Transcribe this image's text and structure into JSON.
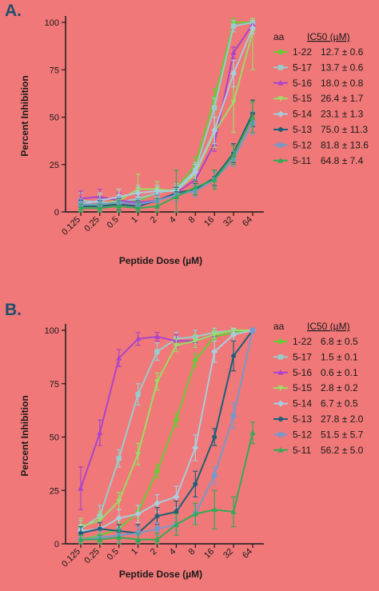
{
  "colors": {
    "background": "#f07878",
    "series": {
      "1-22": "#66cc33",
      "5-17": "#99cccc",
      "5-16": "#aa44cc",
      "5-15": "#99dd66",
      "5-14": "#aaccdd",
      "5-13": "#1e5f7a",
      "5-12": "#7799cc",
      "5-11": "#33aa55"
    }
  },
  "chart_data": [
    {
      "type": "line",
      "panel_label": "A.",
      "xlabel": "Peptide Dose (µM)",
      "ylabel": "Percent Inhibition",
      "x_scale": "log2",
      "x": [
        0.125,
        0.25,
        0.5,
        1,
        2,
        4,
        8,
        16,
        32,
        64
      ],
      "x_tick_labels": [
        "0.125",
        "0.25",
        "0.5",
        "1",
        "2",
        "4",
        "8",
        "16",
        "32",
        "64"
      ],
      "y_ticks": [
        0,
        25,
        50,
        75,
        100
      ],
      "ylim": [
        0,
        100
      ],
      "legend_header": {
        "name": "aa",
        "value": "IC50 (µM)"
      },
      "legend_position": "right",
      "series": [
        {
          "name": "1-22",
          "ic50": "12.7 ± 0.6",
          "marker": "circle",
          "values": [
            3,
            3,
            5,
            6,
            10,
            12,
            25,
            60,
            100,
            100
          ],
          "err": [
            3,
            3,
            4,
            4,
            3,
            3,
            4,
            5,
            2,
            1
          ]
        },
        {
          "name": "5-17",
          "ic50": "13.7 ± 0.6",
          "marker": "square",
          "values": [
            6,
            5,
            5,
            7,
            10,
            12,
            22,
            55,
            98,
            100
          ],
          "err": [
            4,
            4,
            4,
            4,
            3,
            3,
            4,
            5,
            3,
            2
          ]
        },
        {
          "name": "5-16",
          "ic50": "18.0 ± 0.8",
          "marker": "triangle",
          "values": [
            7,
            8,
            6,
            5,
            6,
            10,
            17,
            36,
            84,
            99
          ],
          "err": [
            4,
            4,
            4,
            4,
            4,
            3,
            3,
            4,
            3,
            1
          ]
        },
        {
          "name": "5-15",
          "ic50": "26.4 ± 1.7",
          "marker": "triangle-down",
          "values": [
            3,
            4,
            6,
            12,
            12,
            11,
            20,
            42,
            58,
            95
          ],
          "err": [
            4,
            5,
            6,
            8,
            4,
            3,
            5,
            8,
            16,
            20
          ]
        },
        {
          "name": "5-14",
          "ic50": "23.1 ± 1.3",
          "marker": "diamond",
          "values": [
            4,
            6,
            8,
            10,
            11,
            11,
            21,
            43,
            73,
            97
          ],
          "err": [
            3,
            4,
            4,
            4,
            3,
            3,
            4,
            7,
            7,
            3
          ]
        },
        {
          "name": "5-13",
          "ic50": "75.0 ± 11.3",
          "marker": "hexagon",
          "values": [
            3,
            3,
            4,
            3,
            6,
            10,
            12,
            18,
            31,
            52
          ],
          "err": [
            3,
            3,
            3,
            3,
            3,
            3,
            3,
            4,
            5,
            7
          ]
        },
        {
          "name": "5-12",
          "ic50": "81.8 ± 13.6",
          "marker": "square",
          "values": [
            4,
            4,
            5,
            4,
            6,
            9,
            11,
            17,
            28,
            47
          ],
          "err": [
            3,
            3,
            3,
            3,
            3,
            3,
            3,
            4,
            4,
            6
          ]
        },
        {
          "name": "5-11",
          "ic50": "64.8 ± 7.4",
          "marker": "triangle",
          "values": [
            2,
            2,
            3,
            2,
            3,
            8,
            13,
            17,
            30,
            50
          ],
          "err": [
            2,
            2,
            3,
            3,
            4,
            14,
            4,
            5,
            5,
            8
          ]
        }
      ]
    },
    {
      "type": "line",
      "panel_label": "B.",
      "xlabel": "Peptide Dose (µM)",
      "ylabel": "Percent Inhibition",
      "x_scale": "log2",
      "x": [
        0.125,
        0.25,
        0.5,
        1,
        2,
        4,
        8,
        16,
        32,
        64
      ],
      "x_tick_labels": [
        "0.125",
        "0.25",
        "0.5",
        "1",
        "2",
        "4",
        "8",
        "16",
        "32",
        "64"
      ],
      "y_ticks": [
        0,
        25,
        50,
        75,
        100
      ],
      "ylim": [
        0,
        100
      ],
      "legend_header": {
        "name": "aa",
        "value": "IC50 (µM)"
      },
      "legend_position": "right",
      "series": [
        {
          "name": "1-22",
          "ic50": "6.8 ± 0.5",
          "marker": "circle",
          "values": [
            2,
            4,
            7,
            15,
            34,
            58,
            86,
            97,
            99,
            100
          ],
          "err": [
            2,
            3,
            3,
            3,
            3,
            3,
            3,
            2,
            1,
            1
          ]
        },
        {
          "name": "5-17",
          "ic50": "1.5 ± 0.1",
          "marker": "square",
          "values": [
            7,
            13,
            40,
            70,
            90,
            96,
            97,
            99,
            100,
            100
          ],
          "err": [
            4,
            5,
            4,
            5,
            4,
            3,
            3,
            2,
            1,
            1
          ]
        },
        {
          "name": "5-16",
          "ic50": "0.6 ± 0.1",
          "marker": "triangle",
          "values": [
            26,
            52,
            87,
            96,
            97,
            95,
            95,
            98,
            100,
            100
          ],
          "err": [
            10,
            6,
            4,
            3,
            2,
            3,
            3,
            2,
            1,
            1
          ]
        },
        {
          "name": "5-15",
          "ic50": "2.8 ± 0.2",
          "marker": "triangle-down",
          "values": [
            8,
            11,
            20,
            42,
            76,
            93,
            95,
            98,
            100,
            100
          ],
          "err": [
            4,
            4,
            4,
            5,
            4,
            3,
            3,
            2,
            1,
            1
          ]
        },
        {
          "name": "5-14",
          "ic50": "6.7 ± 0.5",
          "marker": "diamond",
          "values": [
            6,
            7,
            12,
            14,
            19,
            22,
            45,
            90,
            98,
            100
          ],
          "err": [
            3,
            3,
            4,
            4,
            4,
            5,
            6,
            5,
            3,
            1
          ]
        },
        {
          "name": "5-13",
          "ic50": "27.8 ± 2.0",
          "marker": "hexagon",
          "values": [
            5,
            7,
            6,
            5,
            13,
            15,
            28,
            50,
            88,
            100
          ],
          "err": [
            3,
            3,
            3,
            4,
            4,
            5,
            6,
            4,
            7,
            1
          ]
        },
        {
          "name": "5-12",
          "ic50": "51.5 ± 5.7",
          "marker": "square",
          "values": [
            2,
            3,
            4,
            5,
            7,
            9,
            14,
            32,
            60,
            100
          ],
          "err": [
            2,
            3,
            3,
            3,
            3,
            3,
            4,
            4,
            6,
            1
          ]
        },
        {
          "name": "5-11",
          "ic50": "56.2 ± 5.0",
          "marker": "triangle",
          "values": [
            2,
            2,
            3,
            2,
            2,
            9,
            14,
            16,
            15,
            52
          ],
          "err": [
            2,
            2,
            3,
            3,
            3,
            5,
            5,
            9,
            7,
            5
          ]
        }
      ]
    }
  ]
}
